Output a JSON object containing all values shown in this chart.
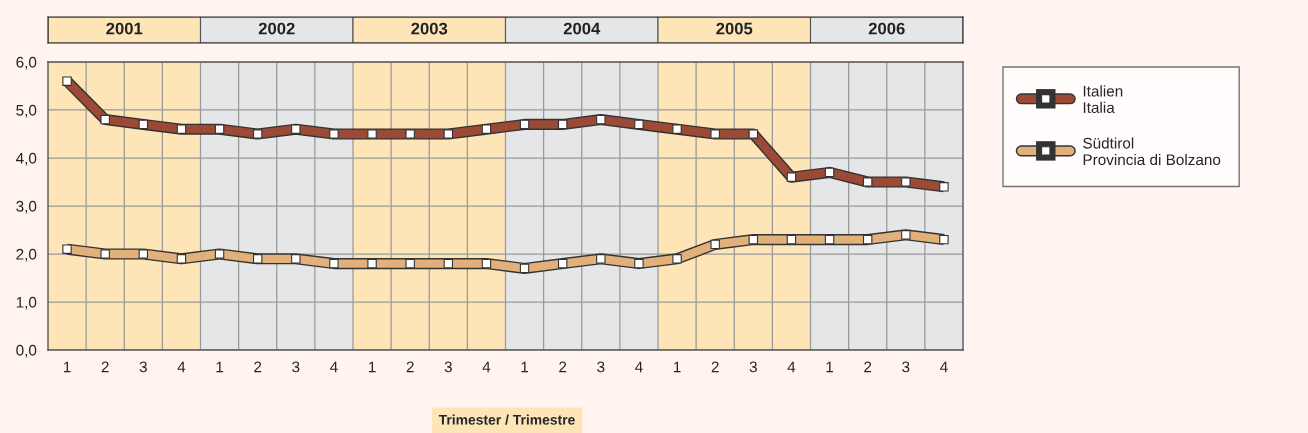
{
  "chart_data": {
    "type": "line",
    "categories": [
      "1",
      "2",
      "3",
      "4",
      "1",
      "2",
      "3",
      "4",
      "1",
      "2",
      "3",
      "4",
      "1",
      "2",
      "3",
      "4",
      "1",
      "2",
      "3",
      "4",
      "1",
      "2",
      "3",
      "4"
    ],
    "series": [
      {
        "name": "Italien\nItalia",
        "color": "#9b4a35",
        "values": [
          5.6,
          4.8,
          4.7,
          4.6,
          4.6,
          4.5,
          4.6,
          4.5,
          4.5,
          4.5,
          4.5,
          4.6,
          4.7,
          4.7,
          4.8,
          4.7,
          4.6,
          4.5,
          4.5,
          3.6,
          3.7,
          3.5,
          3.5,
          3.4
        ]
      },
      {
        "name": "Südtirol\nProvincia di Bolzano",
        "color": "#e2b07a",
        "values": [
          2.1,
          2.0,
          2.0,
          1.9,
          2.0,
          1.9,
          1.9,
          1.8,
          1.8,
          1.8,
          1.8,
          1.8,
          1.7,
          1.8,
          1.9,
          1.8,
          1.9,
          2.2,
          2.3,
          2.3,
          2.3,
          2.3,
          2.4,
          2.3
        ]
      }
    ],
    "ylim": [
      0,
      6
    ],
    "yticks": [
      {
        "value": 0,
        "label": "0,0"
      },
      {
        "value": 1,
        "label": "1,0"
      },
      {
        "value": 2,
        "label": "2,0"
      },
      {
        "value": 3,
        "label": "3,0"
      },
      {
        "value": 4,
        "label": "4,0"
      },
      {
        "value": 5,
        "label": "5,0"
      },
      {
        "value": 6,
        "label": "6,0"
      }
    ],
    "annotations": [
      "2001",
      "2002",
      "2003",
      "2004",
      "2005",
      "2006"
    ],
    "xlabel": "Trimester / Trimestre",
    "grid": true,
    "legend": "right",
    "marker": "square",
    "line_style": "solid"
  }
}
